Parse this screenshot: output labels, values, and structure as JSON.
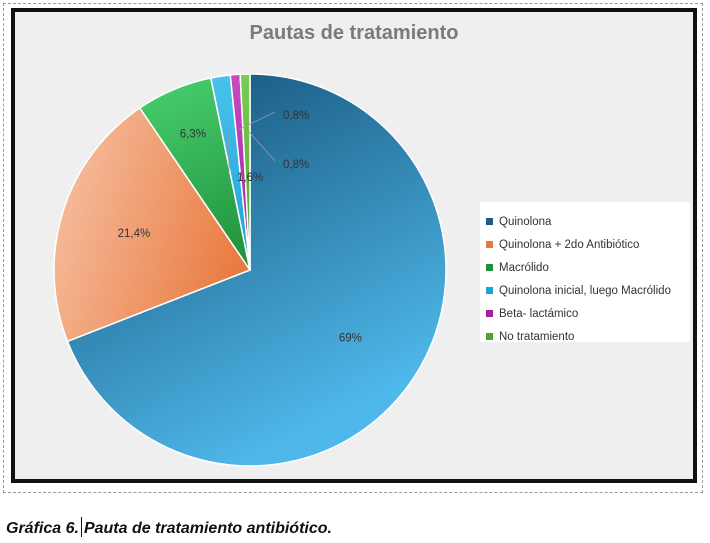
{
  "chart_data": {
    "type": "pie",
    "title": "Pautas de tratamiento",
    "categories": [
      "Quinolona",
      "Quinolona + 2do Antibiótico",
      "Macrólido",
      "Quinolona inicial, luego Macrólido",
      "Beta- lactámico",
      "No tratamiento"
    ],
    "values": [
      69,
      21.4,
      6.3,
      1.6,
      0.8,
      0.8
    ],
    "data_labels": [
      "69%",
      "21,4%",
      "6,3%",
      "1,6%",
      "0,8%",
      "0,8%"
    ],
    "colors_dark": [
      "#1c5f86",
      "#e8773c",
      "#1f8f3a",
      "#1aa3d6",
      "#a0239a",
      "#4aa42e"
    ],
    "colors_light": [
      "#4fb8ea",
      "#f5b896",
      "#44c96a",
      "#48c2ec",
      "#c64ac0",
      "#7ccc55"
    ],
    "legend_placement": "right"
  },
  "caption": {
    "prefix": "Gráfica 6.",
    "text": "Pauta de tratamiento antibiótico."
  }
}
